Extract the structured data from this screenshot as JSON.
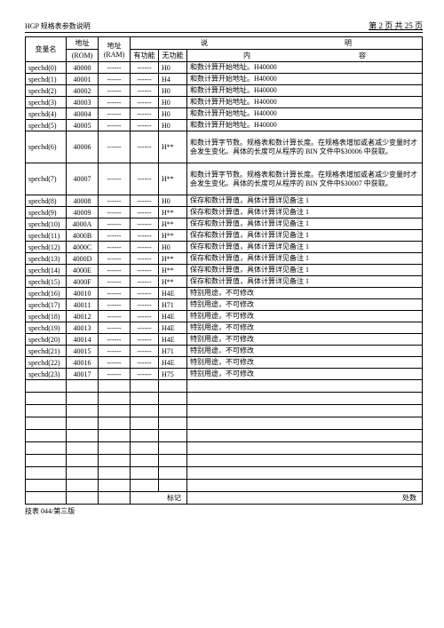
{
  "header": {
    "title": "HGP 规格表参数说明",
    "page": "第 2 页 共 25 页"
  },
  "columns": {
    "var": "变量名",
    "rom": "地址",
    "rom_sub": "(ROM)",
    "ram": "地址",
    "ram_sub": "(RAM)",
    "desc_top_a": "说",
    "desc_top_b": "明",
    "func_yes": "有功能",
    "func_no": "无功能",
    "content_a": "内",
    "content_b": "容"
  },
  "rows": [
    {
      "var": "spechd(0)",
      "rom": "40000",
      "ram": "------",
      "f1": "------",
      "f2": "H0",
      "cont": "和数计算开始地址。H40000"
    },
    {
      "var": "spechd(1)",
      "rom": "40001",
      "ram": "------",
      "f1": "------",
      "f2": "H4",
      "cont": "和数计算开始地址。H40000"
    },
    {
      "var": "spechd(2)",
      "rom": "40002",
      "ram": "------",
      "f1": "------",
      "f2": "H0",
      "cont": "和数计算开始地址。H40000"
    },
    {
      "var": "spechd(3)",
      "rom": "40003",
      "ram": "------",
      "f1": "------",
      "f2": "H0",
      "cont": "和数计算开始地址。H40000"
    },
    {
      "var": "spechd(4)",
      "rom": "40004",
      "ram": "------",
      "f1": "------",
      "f2": "H0",
      "cont": "和数计算开始地址。H40000"
    },
    {
      "var": "spechd(5)",
      "rom": "40005",
      "ram": "------",
      "f1": "------",
      "f2": "H0",
      "cont": "和数计算开始地址。H40000"
    },
    {
      "var": "spechd(6)",
      "rom": "40006",
      "ram": "------",
      "f1": "------",
      "f2": "H**",
      "cont": "和数计算字节数。规格表和数计算长度。在规格表增加或者减少变量时才会发生变化。具体的长度可从程序的 BIN 文件中$30006 中获取。",
      "tall": true
    },
    {
      "var": "spechd(7)",
      "rom": "40007",
      "ram": "------",
      "f1": "------",
      "f2": "H**",
      "cont": "和数计算字节数。规格表和数计算长度。在规格表增加或者减少变量时才会发生变化。具体的长度可从程序的 BIN 文件中$30007 中获取。",
      "tall": true
    },
    {
      "var": "spechd(8)",
      "rom": "40008",
      "ram": "------",
      "f1": "------",
      "f2": "H0",
      "cont": "保存和数计算值，具体计算详见备注 1"
    },
    {
      "var": "spechd(9)",
      "rom": "40009",
      "ram": "------",
      "f1": "------",
      "f2": "H**",
      "cont": "保存和数计算值，具体计算详见备注 1"
    },
    {
      "var": "spechd(10)",
      "rom": "4000A",
      "ram": "------",
      "f1": "------",
      "f2": "H**",
      "cont": "保存和数计算值，具体计算详见备注 1"
    },
    {
      "var": "spechd(11)",
      "rom": "4000B",
      "ram": "------",
      "f1": "------",
      "f2": "H**",
      "cont": "保存和数计算值，具体计算详见备注 1"
    },
    {
      "var": "spechd(12)",
      "rom": "4000C",
      "ram": "------",
      "f1": "------",
      "f2": "H0",
      "cont": "保存和数计算值，具体计算详见备注 1"
    },
    {
      "var": "spechd(13)",
      "rom": "4000D",
      "ram": "------",
      "f1": "------",
      "f2": "H**",
      "cont": "保存和数计算值，具体计算详见备注 1"
    },
    {
      "var": "spechd(14)",
      "rom": "4000E",
      "ram": "------",
      "f1": "------",
      "f2": "H**",
      "cont": "保存和数计算值，具体计算详见备注 1"
    },
    {
      "var": "spechd(15)",
      "rom": "4000F",
      "ram": "------",
      "f1": "------",
      "f2": "H**",
      "cont": "保存和数计算值，具体计算详见备注 1"
    },
    {
      "var": "spechd(16)",
      "rom": "40010",
      "ram": "------",
      "f1": "------",
      "f2": "H4E",
      "cont": "特别用途，不可修改"
    },
    {
      "var": "spechd(17)",
      "rom": "40011",
      "ram": "------",
      "f1": "------",
      "f2": "H71",
      "cont": "特别用途，不可修改"
    },
    {
      "var": "spechd(18)",
      "rom": "40012",
      "ram": "------",
      "f1": "------",
      "f2": "H4E",
      "cont": "特别用途，不可修改"
    },
    {
      "var": "spechd(19)",
      "rom": "40013",
      "ram": "------",
      "f1": "------",
      "f2": "H4E",
      "cont": "特别用途，不可修改"
    },
    {
      "var": "spechd(20)",
      "rom": "40014",
      "ram": "------",
      "f1": "------",
      "f2": "H4E",
      "cont": "特别用途，不可修改"
    },
    {
      "var": "spechd(21)",
      "rom": "40015",
      "ram": "------",
      "f1": "------",
      "f2": "H71",
      "cont": "特别用途，不可修改"
    },
    {
      "var": "spechd(22)",
      "rom": "40016",
      "ram": "------",
      "f1": "------",
      "f2": "H4E",
      "cont": "特别用途，不可修改"
    },
    {
      "var": "spechd(23)",
      "rom": "40017",
      "ram": "------",
      "f1": "------",
      "f2": "H75",
      "cont": "特别用途，不可修改"
    }
  ],
  "empty_rows": 9,
  "footer_row": {
    "mark": "标记",
    "count": "处数"
  },
  "footer_text": "技表 044/第三版",
  "style": {
    "border": "#000000",
    "bg": "#ffffff",
    "fontsize_body": 8,
    "fontsize_title": 12
  }
}
